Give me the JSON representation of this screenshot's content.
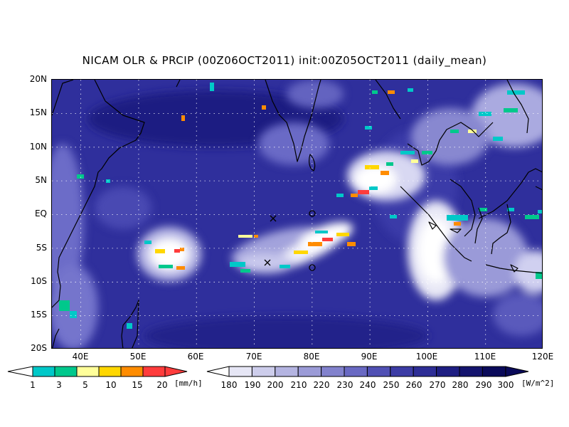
{
  "title": "NICAM OLR & PRCIP (00Z06OCT2011) init:00Z05OCT2011 (daily_mean)",
  "map": {
    "lon_range": [
      35,
      120
    ],
    "lat_range": [
      -20,
      20
    ],
    "gridlines": "dotted",
    "lat_ticks": [
      "20N",
      "15N",
      "10N",
      "5N",
      "EQ",
      "5S",
      "10S",
      "15S",
      "20S"
    ],
    "lon_ticks": [
      "40E",
      "50E",
      "60E",
      "70E",
      "80E",
      "90E",
      "100E",
      "110E",
      "120E"
    ],
    "markers": [
      {
        "symbol": "x",
        "lon": 73,
        "lat": 0.3
      },
      {
        "symbol": "x",
        "lon": 72,
        "lat": -7.5
      },
      {
        "symbol": "o",
        "lon": 80,
        "lat": 0.8
      },
      {
        "symbol": "o",
        "lon": 80,
        "lat": -7.9
      }
    ]
  },
  "precip_colorbar": {
    "ticks": [
      "1",
      "3",
      "5",
      "10",
      "15",
      "20"
    ],
    "unit": "[mm/h]",
    "colors": [
      "#00c8c8",
      "#00c88c",
      "#ffff9a",
      "#ffd700",
      "#ff8c00",
      "#ff3c3c"
    ]
  },
  "olr_colorbar": {
    "ticks": [
      "180",
      "190",
      "200",
      "210",
      "220",
      "230",
      "240",
      "250",
      "260",
      "270",
      "280",
      "290",
      "300"
    ],
    "unit": "[W/m^2]",
    "colors": [
      "#ffffff",
      "#e6e6f5",
      "#cdcdeb",
      "#b4b4e1",
      "#9b9bd7",
      "#8282cd",
      "#6969c3",
      "#5050b4",
      "#3c3ca5",
      "#2d2d96",
      "#1e1e82",
      "#14146e",
      "#0a0a5a"
    ]
  }
}
